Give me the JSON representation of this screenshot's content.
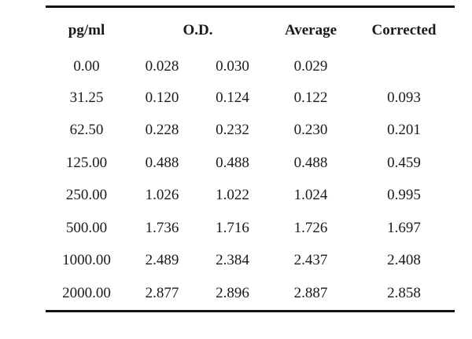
{
  "table": {
    "headers": [
      "pg/ml",
      "O.D.",
      "Average",
      "Corrected"
    ],
    "rows": [
      {
        "conc": "0.00",
        "od1": "0.028",
        "od2": "0.030",
        "average": "0.029",
        "corrected": ""
      },
      {
        "conc": "31.25",
        "od1": "0.120",
        "od2": "0.124",
        "average": "0.122",
        "corrected": "0.093"
      },
      {
        "conc": "62.50",
        "od1": "0.228",
        "od2": "0.232",
        "average": "0.230",
        "corrected": "0.201"
      },
      {
        "conc": "125.00",
        "od1": "0.488",
        "od2": "0.488",
        "average": "0.488",
        "corrected": "0.459"
      },
      {
        "conc": "250.00",
        "od1": "1.026",
        "od2": "1.022",
        "average": "1.024",
        "corrected": "0.995"
      },
      {
        "conc": "500.00",
        "od1": "1.736",
        "od2": "1.716",
        "average": "1.726",
        "corrected": "1.697"
      },
      {
        "conc": "1000.00",
        "od1": "2.489",
        "od2": "2.384",
        "average": "2.437",
        "corrected": "2.408"
      },
      {
        "conc": "2000.00",
        "od1": "2.877",
        "od2": "2.896",
        "average": "2.887",
        "corrected": "2.858"
      }
    ]
  }
}
